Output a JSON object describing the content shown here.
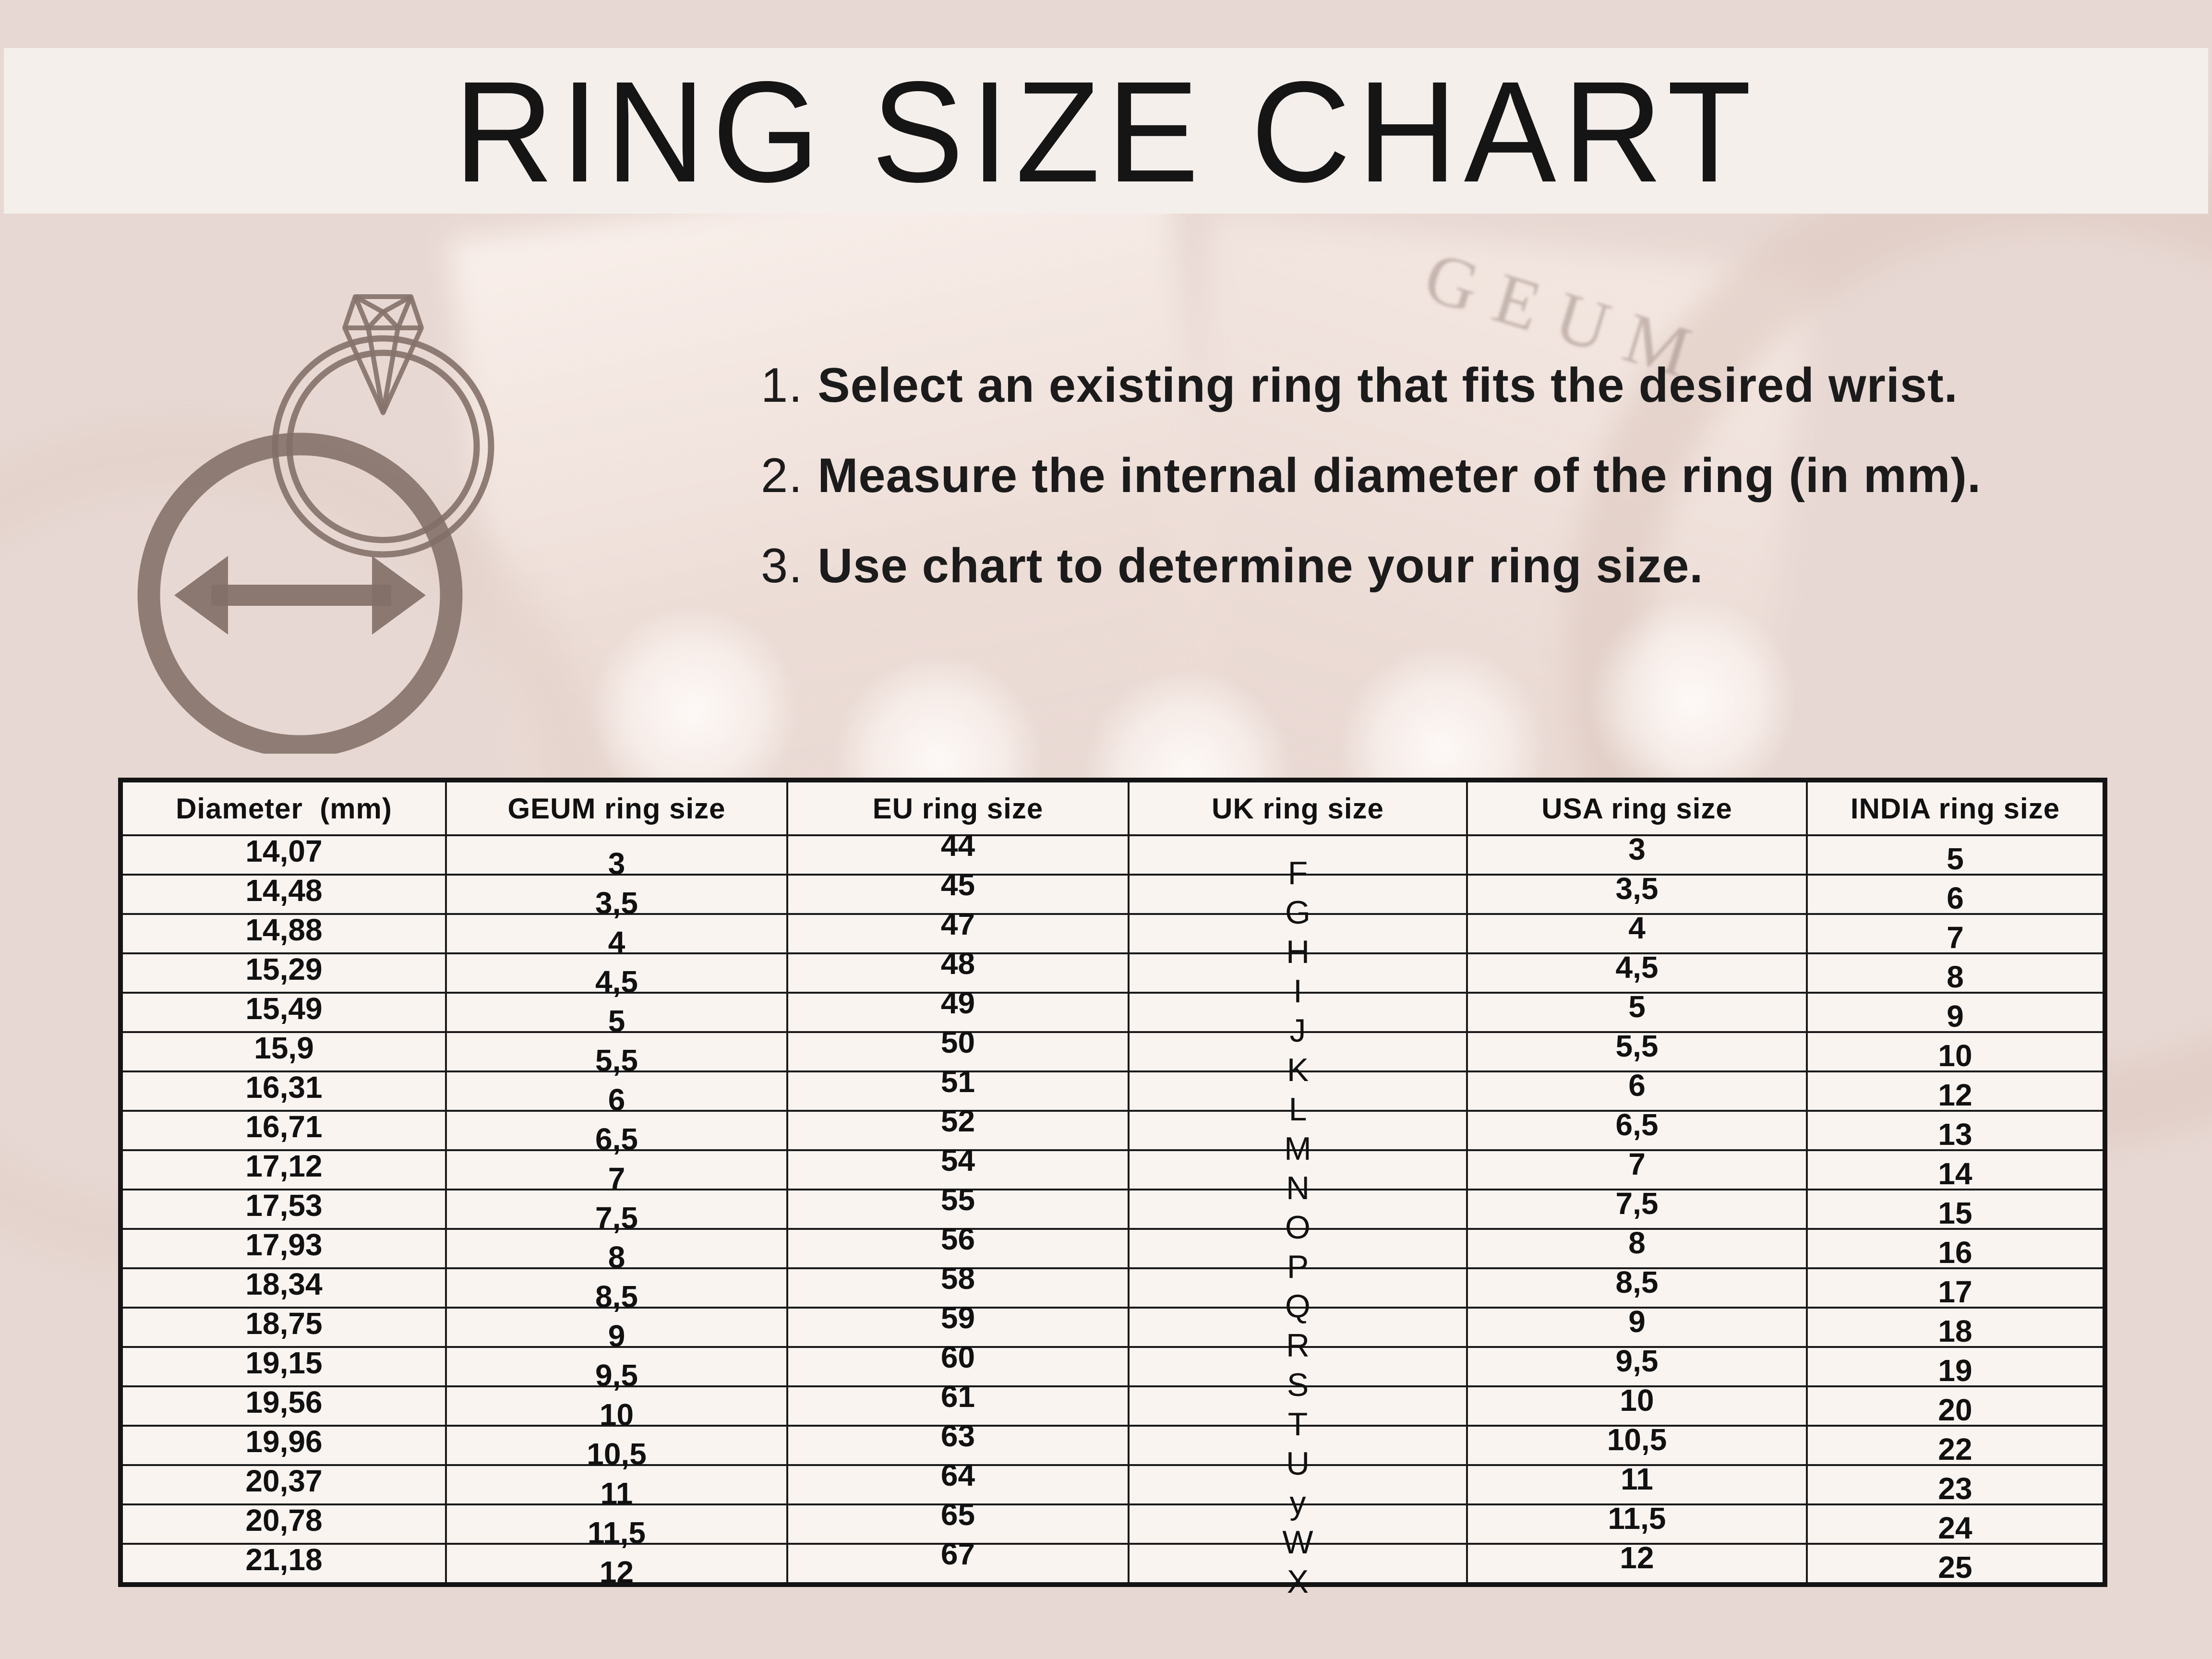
{
  "header": {
    "title": "RING SIZE CHART"
  },
  "instructions": [
    {
      "num": "1.",
      "text": "Select an existing ring that fits the desired wrist."
    },
    {
      "num": "2.",
      "text": "Measure the internal diameter of the ring (in mm)."
    },
    {
      "num": "3.",
      "text": "Use chart to determine your ring size."
    }
  ],
  "background": {
    "engraving_text": "GEUM"
  },
  "icons": {
    "ring_diamond": "ring-with-diamond-icon",
    "diameter_measure": "diameter-arrow-icon"
  },
  "colors": {
    "page_background": "#e8d8d3",
    "title_band": "#f5efec",
    "table_cell": "#faf4f1",
    "table_border": "#1a1a1a",
    "text": "#1b1b1b",
    "icon_taupe": "#8c7a72"
  },
  "chart_data": {
    "type": "table",
    "title": "RING SIZE CHART",
    "columns": [
      "Diameter  (mm)",
      "GEUM ring size",
      "EU ring size",
      "UK ring size",
      "USA ring size",
      "INDIA ring size"
    ],
    "rows": [
      [
        "14,07",
        "3",
        "44",
        "F",
        "3",
        "5"
      ],
      [
        "14,48",
        "3,5",
        "45",
        "G",
        "3,5",
        "6"
      ],
      [
        "14,88",
        "4",
        "47",
        "H",
        "4",
        "7"
      ],
      [
        "15,29",
        "4,5",
        "48",
        "I",
        "4,5",
        "8"
      ],
      [
        "15,49",
        "5",
        "49",
        "J",
        "5",
        "9"
      ],
      [
        "15,9",
        "5,5",
        "50",
        "K",
        "5,5",
        "10"
      ],
      [
        "16,31",
        "6",
        "51",
        "L",
        "6",
        "12"
      ],
      [
        "16,71",
        "6,5",
        "52",
        "M",
        "6,5",
        "13"
      ],
      [
        "17,12",
        "7",
        "54",
        "N",
        "7",
        "14"
      ],
      [
        "17,53",
        "7,5",
        "55",
        "O",
        "7,5",
        "15"
      ],
      [
        "17,93",
        "8",
        "56",
        "P",
        "8",
        "16"
      ],
      [
        "18,34",
        "8,5",
        "58",
        "Q",
        "8,5",
        "17"
      ],
      [
        "18,75",
        "9",
        "59",
        "R",
        "9",
        "18"
      ],
      [
        "19,15",
        "9,5",
        "60",
        "S",
        "9,5",
        "19"
      ],
      [
        "19,56",
        "10",
        "61",
        "T",
        "10",
        "20"
      ],
      [
        "19,96",
        "10,5",
        "63",
        "U",
        "10,5",
        "22"
      ],
      [
        "20,37",
        "11",
        "64",
        "y",
        "11",
        "23"
      ],
      [
        "20,78",
        "11,5",
        "65",
        "W",
        "11,5",
        "24"
      ],
      [
        "21,18",
        "12",
        "67",
        "X",
        "12",
        "25"
      ]
    ]
  }
}
